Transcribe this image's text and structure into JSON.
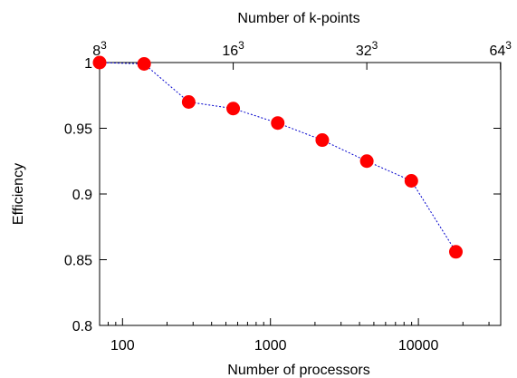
{
  "chart_data": {
    "type": "scatter",
    "title": "",
    "xlabel": "Number of processors",
    "ylabel": "Efficiency",
    "x2label": "Number of k-points",
    "xscale": "log",
    "xlim": [
      70,
      36000
    ],
    "ylim": [
      0.8,
      1.0
    ],
    "grid": false,
    "legend": "none",
    "marker_color": "#ff0000",
    "line_color": "#0000cc",
    "x_ticks": [
      {
        "value": 100,
        "label": "100"
      },
      {
        "value": 1000,
        "label": "1000"
      },
      {
        "value": 10000,
        "label": "10000"
      }
    ],
    "y_ticks": [
      {
        "value": 0.8,
        "label": "0.8"
      },
      {
        "value": 0.85,
        "label": "0.85"
      },
      {
        "value": 0.9,
        "label": "0.9"
      },
      {
        "value": 0.95,
        "label": "0.95"
      },
      {
        "value": 1.0,
        "label": "1"
      }
    ],
    "x2_ticks": [
      {
        "value": 70,
        "base": "8",
        "exp": "3"
      },
      {
        "value": 560,
        "base": "16",
        "exp": "3"
      },
      {
        "value": 4480,
        "base": "32",
        "exp": "3"
      },
      {
        "value": 35840,
        "base": "64",
        "exp": "3"
      }
    ],
    "series": [
      {
        "x": [
          70,
          140,
          280,
          560,
          1120,
          2240,
          4480,
          8960,
          17920
        ],
        "y": [
          1.0,
          0.999,
          0.97,
          0.965,
          0.954,
          0.941,
          0.925,
          0.91,
          0.856
        ]
      }
    ]
  }
}
